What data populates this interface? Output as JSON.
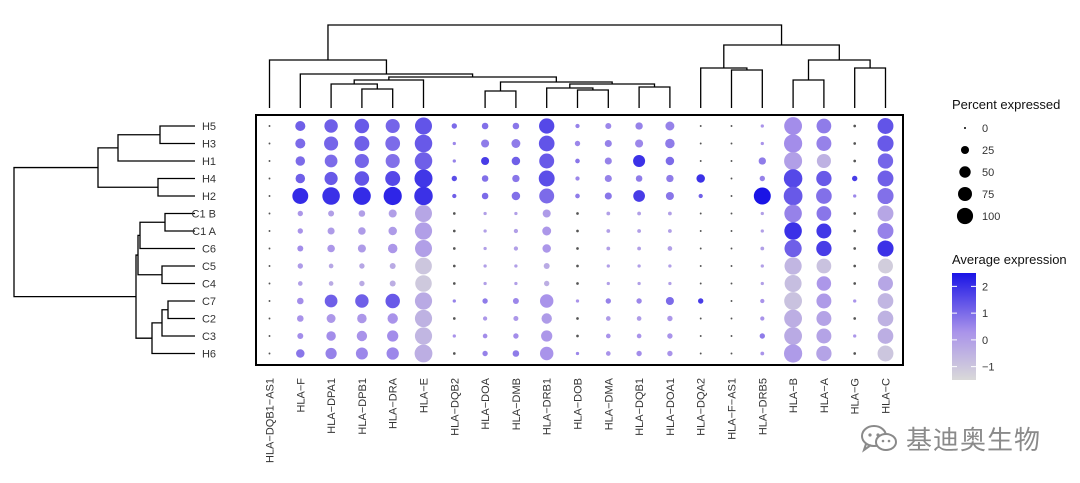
{
  "chart_data": {
    "type": "dotplot",
    "title": "",
    "xlabel": "",
    "ylabel": "",
    "rows": [
      "H5",
      "H3",
      "H1",
      "H4",
      "H2",
      "C1 B",
      "C1 A",
      "C6",
      "C5",
      "C4",
      "C7",
      "C2",
      "C3",
      "H6"
    ],
    "columns": [
      "HLA−DQB1−AS1",
      "HLA−F",
      "HLA−DPA1",
      "HLA−DPB1",
      "HLA−DRA",
      "HLA−E",
      "HLA−DQB2",
      "HLA−DOA",
      "HLA−DMB",
      "HLA−DRB1",
      "HLA−DOB",
      "HLA−DMA",
      "HLA−DQB1",
      "HLA−DOA1",
      "HLA−DQA2",
      "HLA−F−AS1",
      "HLA−DRB5",
      "HLA−B",
      "HLA−A",
      "HLA−G",
      "HLA−C"
    ],
    "percent_expressed": [
      [
        1,
        28,
        50,
        58,
        55,
        80,
        8,
        12,
        12,
        65,
        5,
        10,
        15,
        22,
        1,
        1,
        3,
        88,
        60,
        2,
        70
      ],
      [
        1,
        28,
        55,
        62,
        60,
        85,
        3,
        18,
        22,
        68,
        8,
        14,
        18,
        25,
        1,
        1,
        3,
        92,
        62,
        2,
        72
      ],
      [
        1,
        25,
        45,
        55,
        55,
        85,
        3,
        18,
        20,
        62,
        6,
        14,
        40,
        20,
        1,
        1,
        15,
        90,
        55,
        2,
        65
      ],
      [
        1,
        25,
        48,
        58,
        62,
        90,
        8,
        12,
        15,
        70,
        5,
        14,
        12,
        15,
        20,
        1,
        8,
        95,
        65,
        8,
        70
      ],
      [
        1,
        70,
        85,
        88,
        92,
        95,
        5,
        12,
        20,
        62,
        6,
        14,
        38,
        18,
        5,
        1,
        80,
        98,
        68,
        3,
        72
      ],
      [
        1,
        8,
        10,
        12,
        18,
        80,
        2,
        3,
        3,
        18,
        2,
        4,
        4,
        4,
        1,
        1,
        3,
        85,
        60,
        2,
        70
      ],
      [
        1,
        8,
        14,
        16,
        20,
        82,
        2,
        3,
        5,
        22,
        2,
        4,
        4,
        4,
        1,
        1,
        3,
        85,
        62,
        2,
        70
      ],
      [
        1,
        10,
        16,
        18,
        25,
        80,
        2,
        3,
        5,
        20,
        2,
        4,
        4,
        6,
        1,
        1,
        4,
        82,
        65,
        2,
        72
      ],
      [
        1,
        8,
        6,
        8,
        10,
        78,
        2,
        3,
        3,
        10,
        2,
        3,
        3,
        3,
        1,
        1,
        3,
        82,
        60,
        2,
        62
      ],
      [
        1,
        6,
        6,
        8,
        10,
        76,
        2,
        3,
        3,
        8,
        2,
        3,
        3,
        3,
        1,
        1,
        3,
        80,
        58,
        2,
        62
      ],
      [
        1,
        12,
        45,
        50,
        58,
        82,
        3,
        8,
        10,
        50,
        3,
        8,
        8,
        18,
        8,
        1,
        5,
        88,
        62,
        3,
        68
      ],
      [
        1,
        12,
        22,
        25,
        30,
        82,
        2,
        5,
        7,
        30,
        2,
        6,
        6,
        8,
        1,
        1,
        5,
        88,
        62,
        2,
        68
      ],
      [
        1,
        10,
        25,
        30,
        35,
        82,
        3,
        6,
        8,
        35,
        2,
        6,
        6,
        8,
        1,
        1,
        8,
        88,
        62,
        3,
        68
      ],
      [
        1,
        20,
        35,
        40,
        42,
        88,
        2,
        8,
        12,
        50,
        3,
        6,
        8,
        8,
        1,
        1,
        4,
        92,
        65,
        2,
        70
      ]
    ],
    "average_expression": [
      [
        0,
        1.2,
        1.2,
        1.3,
        1.1,
        1.4,
        1.0,
        0.9,
        0.8,
        1.6,
        0.6,
        0.5,
        0.6,
        0.6,
        0,
        0,
        0.3,
        0.4,
        0.7,
        0,
        1.4
      ],
      [
        0,
        1.0,
        1.1,
        1.2,
        1.0,
        1.3,
        0.5,
        0.7,
        0.7,
        1.4,
        0.5,
        0.6,
        0.5,
        0.7,
        0,
        0,
        0.3,
        0.4,
        0.6,
        0,
        1.3
      ],
      [
        0,
        1.0,
        1.0,
        1.1,
        0.9,
        1.2,
        0.6,
        1.8,
        1.2,
        1.3,
        0.8,
        0.6,
        2.0,
        1.0,
        0,
        0,
        0.7,
        0.0,
        -0.5,
        0,
        1.1
      ],
      [
        0,
        1.2,
        1.3,
        1.4,
        1.6,
        1.9,
        1.5,
        0.9,
        0.8,
        1.5,
        0.5,
        0.6,
        0.7,
        0.7,
        2.0,
        0,
        0.6,
        1.6,
        1.3,
        1.8,
        1.2
      ],
      [
        0,
        2.1,
        2.0,
        2.1,
        2.2,
        2.0,
        1.2,
        1.0,
        0.9,
        1.0,
        0.7,
        0.8,
        1.8,
        0.8,
        1.2,
        0,
        2.5,
        1.3,
        0.9,
        0.5,
        0.9
      ],
      [
        0,
        0.2,
        0.0,
        0.0,
        0.0,
        -0.2,
        0,
        0,
        0,
        0.1,
        0,
        0,
        0,
        0,
        0,
        0,
        0,
        0.6,
        0.8,
        0,
        -0.2
      ],
      [
        0,
        0.3,
        0.1,
        0.1,
        0.1,
        0.0,
        0,
        0,
        0,
        0.2,
        0,
        0,
        0,
        0,
        0,
        0,
        0,
        2.0,
        1.9,
        0,
        0.6
      ],
      [
        0,
        0.4,
        0.2,
        0.1,
        0.2,
        0.0,
        0,
        0,
        0,
        0.2,
        0,
        0,
        0,
        0,
        0,
        0,
        0,
        1.2,
        1.8,
        0,
        2.0
      ],
      [
        0,
        0.1,
        -0.2,
        -0.2,
        -0.3,
        -1.0,
        0,
        0,
        0,
        -0.3,
        0,
        0,
        0,
        0,
        0,
        0,
        0,
        -0.6,
        -0.9,
        0,
        -1.2
      ],
      [
        0,
        0.0,
        -0.3,
        -0.3,
        -0.4,
        -1.1,
        0,
        0,
        0,
        -0.4,
        0,
        0,
        0,
        0,
        0,
        0,
        0,
        -0.8,
        0.2,
        0,
        -0.2
      ],
      [
        0,
        0.4,
        1.2,
        1.2,
        1.3,
        -0.3,
        0.6,
        0.7,
        0.5,
        0.3,
        0.3,
        0.6,
        0.5,
        1.0,
        1.8,
        0,
        0.3,
        -0.9,
        0.1,
        0.3,
        -0.6
      ],
      [
        0,
        0.3,
        0.2,
        0.2,
        0.3,
        -0.5,
        0,
        0.2,
        0.2,
        0.1,
        0,
        0.1,
        0.1,
        0.2,
        0,
        0,
        0.3,
        -0.4,
        -0.1,
        0,
        -0.5
      ],
      [
        0,
        0.4,
        0.4,
        0.3,
        0.4,
        -0.6,
        0.3,
        0.4,
        0.4,
        0.2,
        0,
        0.3,
        0.3,
        0.3,
        0,
        0,
        0.7,
        -0.3,
        -0.1,
        0.2,
        -0.4
      ],
      [
        0,
        0.8,
        0.6,
        0.5,
        0.5,
        -0.4,
        0,
        0.6,
        0.7,
        0.3,
        0.5,
        0.3,
        0.4,
        0.3,
        0,
        0,
        0.3,
        0.1,
        -0.1,
        0,
        -1.0
      ]
    ],
    "legend_size": {
      "title": "Percent expressed",
      "values": [
        0,
        25,
        50,
        75,
        100
      ],
      "labels": [
        "0",
        "25",
        "50",
        "75",
        "100"
      ]
    },
    "legend_color": {
      "title": "Average expression",
      "range": [
        -1.5,
        2.5
      ],
      "ticks": [
        2,
        1,
        0,
        -1
      ],
      "tick_labels": [
        "2",
        "1",
        "0",
        "−1"
      ],
      "low_color": "#d9d9d9",
      "high_color": "#1a14e6"
    }
  },
  "watermark": {
    "text": "基迪奥生物",
    "icon": "wechat-icon"
  },
  "colors": {
    "frame": "#000000",
    "dendrogram": "#000000"
  }
}
